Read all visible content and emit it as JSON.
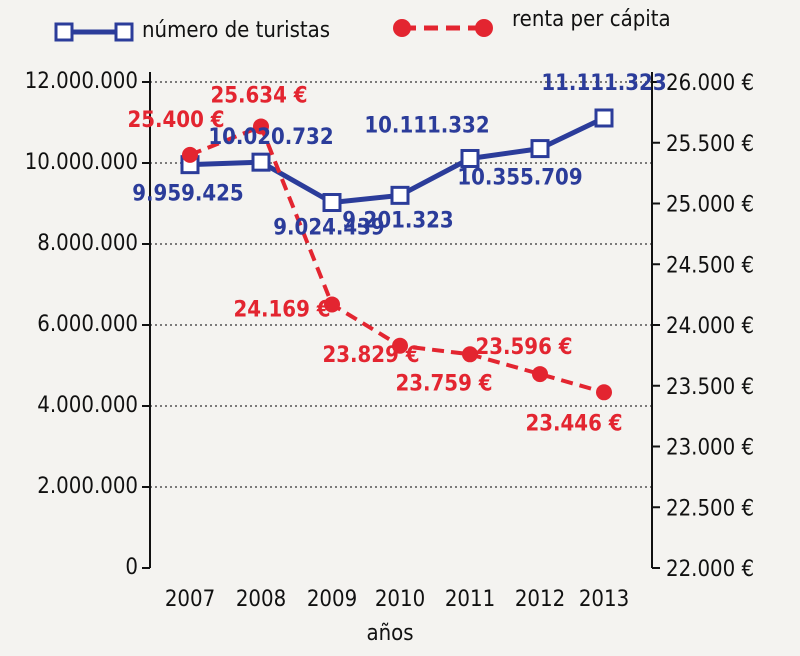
{
  "chart_data": {
    "type": "line",
    "categories": [
      "2007",
      "2008",
      "2009",
      "2010",
      "2011",
      "2012",
      "2013"
    ],
    "xlabel": "años",
    "series": [
      {
        "name": "número de turistas",
        "axis": "left",
        "style": "solid, hollow square markers",
        "color": "#2b3c9a",
        "values": [
          9959425,
          10020732,
          9024439,
          9201323,
          10111332,
          10355709,
          11111323
        ],
        "labels": [
          "9.959.425",
          "10.020.732",
          "9.024.439",
          "9.201.323",
          "10.111.332",
          "10.355.709",
          "11.111.323"
        ]
      },
      {
        "name": "renta per cápita",
        "axis": "right",
        "style": "dashed, filled circle markers",
        "color": "#e32530",
        "values": [
          25400,
          25634,
          24169,
          23829,
          23759,
          23596,
          23446
        ],
        "labels": [
          "25.400 €",
          "25.634 €",
          "24.169 €",
          "23.829 €",
          "23.759 €",
          "23.596 €",
          "23.446 €"
        ]
      }
    ],
    "y_left": {
      "ylim": [
        0,
        12000000
      ],
      "ticks": [
        "0",
        "2.000.000",
        "4.000.000",
        "6.000.000",
        "8.000.000",
        "10.000.000",
        "12.000.000"
      ]
    },
    "y_right": {
      "ylim": [
        22000,
        26000
      ],
      "ticks": [
        "22.000 €",
        "22.500 €",
        "23.000 €",
        "23.500 €",
        "24.000 €",
        "24.500 €",
        "25.000 €",
        "25.500 €",
        "26.000 €"
      ]
    },
    "grid": "horizontal dotted",
    "legend": "top"
  }
}
